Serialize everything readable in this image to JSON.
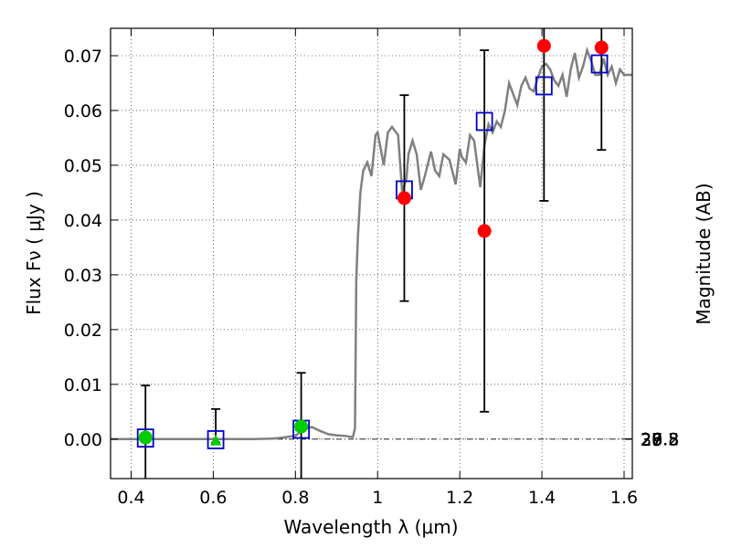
{
  "chart_data": {
    "type": "scatter",
    "xlabel": "Wavelength  λ (μm)",
    "ylabel": "Flux  Fν  ( μJy )",
    "ylabel_right": "Magnitude (AB)",
    "xlim": [
      0.35,
      1.62
    ],
    "ylim": [
      -0.0072,
      0.075
    ],
    "grid": true,
    "x_ticks": [
      0.4,
      0.6,
      0.8,
      1.0,
      1.2,
      1.4,
      1.6
    ],
    "x_tick_labels": [
      "0.4",
      "0.6",
      "0.8",
      "1",
      "1.2",
      "1.4",
      "1.6"
    ],
    "y_ticks": [
      0.0,
      0.01,
      0.02,
      0.03,
      0.04,
      0.05,
      0.06,
      0.07
    ],
    "y_tick_labels": [
      "0.00",
      "0.01",
      "0.02",
      "0.03",
      "0.04",
      "0.05",
      "0.06",
      "0.07"
    ],
    "mag_ticks": [
      26.8,
      27,
      27.2,
      27.5,
      28,
      28.5,
      29,
      30
    ],
    "mag_tick_labels": [
      "26.8",
      "27",
      "27.2",
      "27.5",
      "28",
      "28.5",
      "29",
      "30"
    ],
    "series": [
      {
        "kind": "model-spectrum",
        "color": "#808080",
        "x": [
          0.35,
          0.4,
          0.45,
          0.5,
          0.55,
          0.6,
          0.65,
          0.7,
          0.74,
          0.76,
          0.78,
          0.8,
          0.82,
          0.84,
          0.86,
          0.88,
          0.9,
          0.92,
          0.935,
          0.94,
          0.945,
          0.948,
          0.952,
          0.958,
          0.965,
          0.975,
          0.985,
          0.995,
          1.0,
          1.005,
          1.015,
          1.025,
          1.035,
          1.04,
          1.05,
          1.06,
          1.07,
          1.075,
          1.085,
          1.095,
          1.105,
          1.115,
          1.125,
          1.13,
          1.14,
          1.15,
          1.16,
          1.175,
          1.19,
          1.2,
          1.205,
          1.215,
          1.225,
          1.235,
          1.25,
          1.26,
          1.27,
          1.28,
          1.29,
          1.3,
          1.31,
          1.32,
          1.33,
          1.34,
          1.35,
          1.36,
          1.37,
          1.38,
          1.39,
          1.4,
          1.41,
          1.42,
          1.43,
          1.44,
          1.45,
          1.46,
          1.47,
          1.48,
          1.49,
          1.5,
          1.51,
          1.52,
          1.53,
          1.54,
          1.55,
          1.56,
          1.57,
          1.58,
          1.59,
          1.6,
          1.61,
          1.62
        ],
        "y": [
          0.0,
          0.0,
          0.0,
          0.0,
          0.0,
          0.0,
          0.0,
          0.0,
          0.0001,
          0.0002,
          0.0004,
          0.0006,
          0.0018,
          0.0022,
          0.0015,
          0.0009,
          0.0007,
          0.0006,
          0.0004,
          0.0004,
          0.002,
          0.029,
          0.037,
          0.045,
          0.049,
          0.0505,
          0.048,
          0.0555,
          0.056,
          0.054,
          0.05,
          0.056,
          0.057,
          0.0565,
          0.0555,
          0.045,
          0.0475,
          0.052,
          0.0545,
          0.052,
          0.0455,
          0.048,
          0.051,
          0.0525,
          0.049,
          0.048,
          0.052,
          0.051,
          0.0465,
          0.053,
          0.0515,
          0.0505,
          0.0555,
          0.0545,
          0.046,
          0.0535,
          0.0575,
          0.056,
          0.058,
          0.057,
          0.06,
          0.065,
          0.063,
          0.061,
          0.0645,
          0.066,
          0.064,
          0.0635,
          0.066,
          0.068,
          0.0685,
          0.0675,
          0.0655,
          0.0645,
          0.0665,
          0.0625,
          0.0675,
          0.0705,
          0.066,
          0.068,
          0.071,
          0.069,
          0.0665,
          0.0665,
          0.0695,
          0.0665,
          0.068,
          0.065,
          0.0675,
          0.0665,
          0.0665,
          0.0665
        ]
      },
      {
        "kind": "model-photometry",
        "marker": "square",
        "color": "#0000cc",
        "x": [
          0.435,
          0.606,
          0.814,
          1.065,
          1.26,
          1.405,
          1.54
        ],
        "y": [
          0.0002,
          -0.0001,
          0.0018,
          0.0455,
          0.058,
          0.0645,
          0.0685
        ]
      },
      {
        "kind": "observed-ir",
        "marker": "circle",
        "color": "#ff0000",
        "x": [
          1.065,
          1.26,
          1.405,
          1.545
        ],
        "y": [
          0.044,
          0.038,
          0.0718,
          0.0715
        ],
        "err": [
          0.0188,
          0.033,
          0.0283,
          0.0187
        ]
      },
      {
        "kind": "observed-optical",
        "marker": "circle",
        "color": "#00cc00",
        "x": [
          0.435,
          0.814
        ],
        "y": [
          0.0003,
          0.0023
        ],
        "err": [
          0.0095,
          0.0098
        ]
      },
      {
        "kind": "observed-upper-limit",
        "marker": "triangle",
        "color": "#00cc00",
        "x": [
          0.606
        ],
        "y": [
          -0.0003
        ],
        "err_upper": [
          0.0058
        ],
        "err_lower": [
          0.0003
        ]
      }
    ]
  }
}
